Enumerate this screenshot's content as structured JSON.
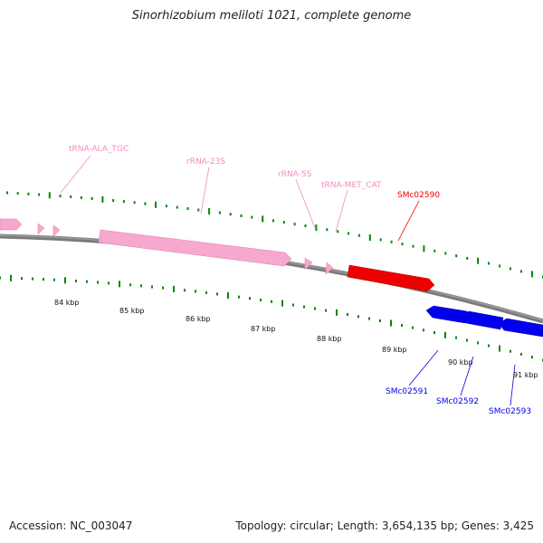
{
  "title": "Sinorhizobium meliloti 1021, complete genome",
  "footer": {
    "accession": "Accession: NC_003047",
    "summary": "Topology: circular; Length: 3,654,135 bp; Genes: 3,425"
  },
  "colors": {
    "backbone": "#7a7a7a",
    "rna": "#f7a8cf",
    "rna_label": "#f08cc0",
    "plus_gene": "#ee0000",
    "minus_gene": "#0000ee",
    "tick": "#008800"
  },
  "scale_labels": [
    "84 kbp",
    "85 kbp",
    "86 kbp",
    "87 kbp",
    "88 kbp",
    "89 kbp",
    "90 kbp",
    "91 kbp"
  ],
  "features": [
    {
      "label": "tRNA-ALA_TGC",
      "type": "rna"
    },
    {
      "label": "rRNA-23S",
      "type": "rna"
    },
    {
      "label": "rRNA-5S",
      "type": "rna"
    },
    {
      "label": "tRNA-MET_CAT",
      "type": "rna"
    },
    {
      "label": "SMc02590",
      "type": "plus_gene"
    },
    {
      "label": "SMc02591",
      "type": "minus_gene"
    },
    {
      "label": "SMc02592",
      "type": "minus_gene"
    },
    {
      "label": "SMc02593",
      "type": "minus_gene"
    }
  ]
}
